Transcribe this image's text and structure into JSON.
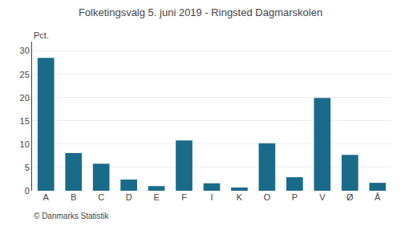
{
  "chart_data": {
    "type": "bar",
    "title": "Folketingsvalg 5. juni 2019 - Ringsted Dagmarskolen",
    "categories": [
      "A",
      "B",
      "C",
      "D",
      "E",
      "F",
      "I",
      "K",
      "O",
      "P",
      "V",
      "Ø",
      "Å"
    ],
    "values": [
      28.5,
      8.1,
      5.8,
      2.4,
      1.0,
      10.8,
      1.6,
      0.7,
      10.2,
      2.9,
      19.9,
      7.7,
      1.7
    ],
    "color": "#1a6b8a",
    "ylabel": "Pct.",
    "ylim": [
      0,
      32
    ],
    "yticks": [
      0,
      5,
      10,
      15,
      20,
      25,
      30
    ],
    "grid": true,
    "annotations": [
      "© Danmarks Statistik"
    ]
  }
}
